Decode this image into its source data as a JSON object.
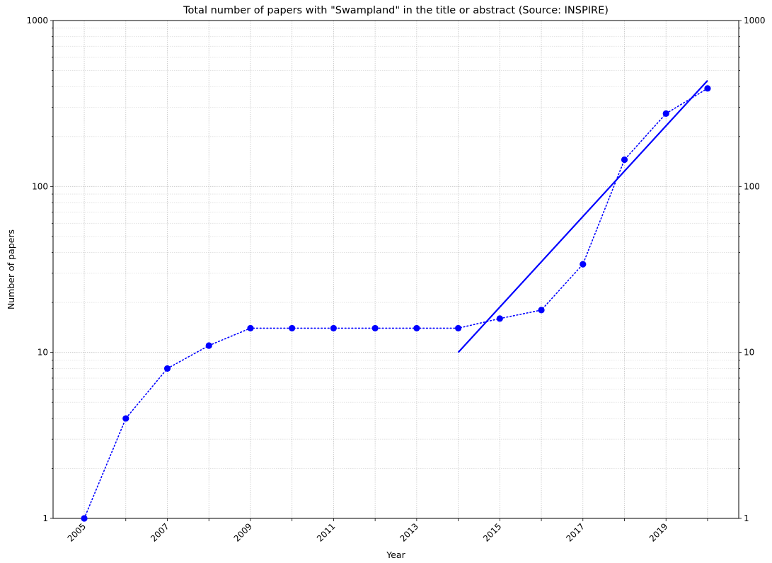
{
  "chart_data": {
    "type": "line",
    "title": "Total number of papers with \"Swampland\" in the title or abstract (Source: INSPIRE)",
    "xlabel": "Year",
    "ylabel": "Number of papers",
    "yscale": "log",
    "ylim": [
      1,
      1000
    ],
    "xlim": [
      2004.25,
      2020.75
    ],
    "grid": true,
    "x_ticks": [
      2005,
      2007,
      2009,
      2011,
      2013,
      2015,
      2017,
      2019
    ],
    "y_ticks": [
      {
        "value": 1,
        "label": "1"
      },
      {
        "value": 10,
        "label": "10"
      },
      {
        "value": 100,
        "label": "100"
      },
      {
        "value": 1000,
        "label": "1000"
      }
    ],
    "series": [
      {
        "style": "dotted-with-markers",
        "color": "#0000ff",
        "x": [
          2005,
          2006,
          2007,
          2008,
          2009,
          2010,
          2011,
          2012,
          2013,
          2014,
          2015,
          2016,
          2017,
          2018,
          2019,
          2020
        ],
        "y": [
          1,
          4,
          8,
          11,
          14,
          14,
          14,
          14,
          14,
          14,
          16,
          18,
          34,
          145,
          275,
          390
        ]
      },
      {
        "style": "solid-fit",
        "color": "#0000ff",
        "x": [
          2014,
          2020
        ],
        "y": [
          10,
          435
        ]
      }
    ]
  }
}
